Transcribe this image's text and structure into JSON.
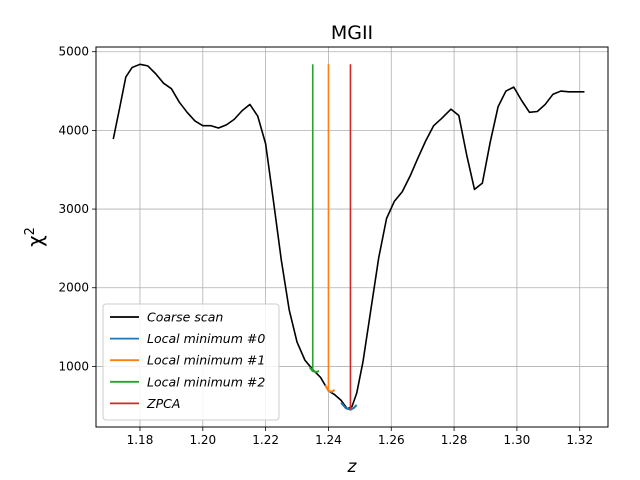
{
  "chart_data": {
    "type": "line",
    "title": "MGII",
    "xlabel": "z",
    "ylabel": "χ",
    "ylabel_sup": "2",
    "xlim": [
      1.166,
      1.329
    ],
    "ylim": [
      230,
      5060
    ],
    "xticks": [
      1.18,
      1.2,
      1.22,
      1.24,
      1.26,
      1.28,
      1.3,
      1.32
    ],
    "xtick_labels": [
      "1.18",
      "1.20",
      "1.22",
      "1.24",
      "1.26",
      "1.28",
      "1.30",
      "1.32"
    ],
    "yticks": [
      1000,
      2000,
      3000,
      4000,
      5000
    ],
    "ytick_labels": [
      "1000",
      "2000",
      "3000",
      "4000",
      "5000"
    ],
    "grid": true,
    "legend_position": "lower-left",
    "series": [
      {
        "name": "Coarse scan",
        "color": "#000000",
        "x": [
          1.1715,
          1.1735,
          1.1755,
          1.1775,
          1.18,
          1.1825,
          1.185,
          1.1875,
          1.19,
          1.1925,
          1.195,
          1.1975,
          1.2,
          1.2025,
          1.205,
          1.2075,
          1.21,
          1.2125,
          1.215,
          1.2175,
          1.22,
          1.2225,
          1.225,
          1.2275,
          1.23,
          1.2325,
          1.235,
          1.2375,
          1.24,
          1.242,
          1.244,
          1.246,
          1.2475,
          1.249,
          1.251,
          1.2535,
          1.256,
          1.2585,
          1.261,
          1.2635,
          1.266,
          1.2685,
          1.271,
          1.2735,
          1.276,
          1.279,
          1.2815,
          1.284,
          1.2865,
          1.289,
          1.2915,
          1.294,
          1.2965,
          1.299,
          1.3015,
          1.304,
          1.3065,
          1.309,
          1.3115,
          1.314,
          1.3165,
          1.319,
          1.3215
        ],
        "y": [
          3890,
          4280,
          4680,
          4800,
          4840,
          4820,
          4720,
          4600,
          4530,
          4360,
          4230,
          4120,
          4060,
          4060,
          4030,
          4070,
          4140,
          4250,
          4330,
          4180,
          3830,
          3100,
          2350,
          1720,
          1310,
          1080,
          960,
          860,
          690,
          640,
          570,
          460,
          490,
          660,
          1060,
          1720,
          2380,
          2880,
          3100,
          3220,
          3420,
          3650,
          3870,
          4060,
          4150,
          4270,
          4190,
          3690,
          3250,
          3330,
          3850,
          4300,
          4500,
          4550,
          4380,
          4230,
          4240,
          4330,
          4460,
          4500,
          4490,
          4490,
          4490
        ]
      },
      {
        "name": "Local minimum #0",
        "color": "#1f77b4",
        "x": [
          1.244,
          1.2455,
          1.247,
          1.248,
          1.249
        ],
        "y": [
          540,
          470,
          450,
          470,
          510
        ]
      },
      {
        "name": "Local minimum #1",
        "color": "#ff7f0e",
        "x": [
          1.239,
          1.24,
          1.241,
          1.242
        ],
        "y": [
          760,
          690,
          680,
          700
        ]
      },
      {
        "name": "Local minimum #2",
        "color": "#2ca02c",
        "x": [
          1.234,
          1.235,
          1.236,
          1.237
        ],
        "y": [
          990,
          940,
          930,
          940
        ]
      }
    ],
    "vlines": [
      {
        "name": "Local minimum #1",
        "x": 1.24,
        "ymin": 690,
        "ymax": 4840,
        "color": "#ff7f0e"
      },
      {
        "name": "Local minimum #2",
        "x": 1.235,
        "ymin": 940,
        "ymax": 4840,
        "color": "#2ca02c"
      },
      {
        "name": "ZPCA",
        "x": 1.247,
        "ymin": 450,
        "ymax": 4840,
        "color": "#d62728"
      }
    ],
    "legend": [
      {
        "label": "Coarse scan",
        "color": "#000000"
      },
      {
        "label": "Local minimum #0",
        "color": "#1f77b4"
      },
      {
        "label": "Local minimum #1",
        "color": "#ff7f0e"
      },
      {
        "label": "Local minimum #2",
        "color": "#2ca02c"
      },
      {
        "label": "ZPCA",
        "color": "#d62728"
      }
    ]
  }
}
